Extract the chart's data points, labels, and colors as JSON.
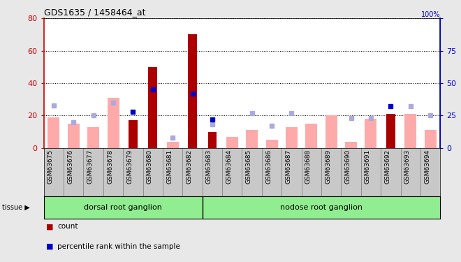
{
  "title": "GDS1635 / 1458464_at",
  "samples": [
    "GSM63675",
    "GSM63676",
    "GSM63677",
    "GSM63678",
    "GSM63679",
    "GSM63680",
    "GSM63681",
    "GSM63682",
    "GSM63683",
    "GSM63684",
    "GSM63685",
    "GSM63686",
    "GSM63687",
    "GSM63688",
    "GSM63689",
    "GSM63690",
    "GSM63691",
    "GSM63692",
    "GSM63693",
    "GSM63694"
  ],
  "red_bar_values": [
    null,
    null,
    null,
    null,
    17,
    50,
    null,
    70,
    10,
    null,
    null,
    null,
    null,
    null,
    null,
    null,
    null,
    21,
    null,
    null
  ],
  "pink_bar_values": [
    19,
    15,
    13,
    31,
    null,
    null,
    4,
    null,
    null,
    7,
    11,
    5,
    13,
    15,
    20,
    4,
    18,
    null,
    21,
    11
  ],
  "blue_dot_values": [
    null,
    null,
    null,
    null,
    28,
    45,
    null,
    42,
    22,
    null,
    null,
    null,
    null,
    null,
    null,
    null,
    null,
    32,
    null,
    null
  ],
  "lavender_dot_values": [
    33,
    20,
    25,
    35,
    null,
    null,
    8,
    null,
    18,
    null,
    27,
    17,
    27,
    null,
    null,
    23,
    23,
    null,
    32,
    25
  ],
  "tissue_groups": [
    {
      "label": "dorsal root ganglion",
      "start": 0,
      "end": 7
    },
    {
      "label": "nodose root ganglion",
      "start": 8,
      "end": 19
    }
  ],
  "ylim_left": [
    0,
    80
  ],
  "ylim_right": [
    0,
    100
  ],
  "yticks_left": [
    0,
    20,
    40,
    60,
    80
  ],
  "yticks_right": [
    0,
    25,
    50,
    75,
    100
  ],
  "left_axis_color": "#cc0000",
  "right_axis_color": "#0000cc",
  "red_bar_color": "#aa0000",
  "pink_bar_color": "#ffaaaa",
  "blue_dot_color": "#0000cc",
  "lavender_dot_color": "#aaaadd",
  "bg_color": "#e8e8e8",
  "plot_bg_color": "#ffffff",
  "tissue_bg_color": "#90ee90",
  "xlab_bg_color": "#c8c8c8"
}
